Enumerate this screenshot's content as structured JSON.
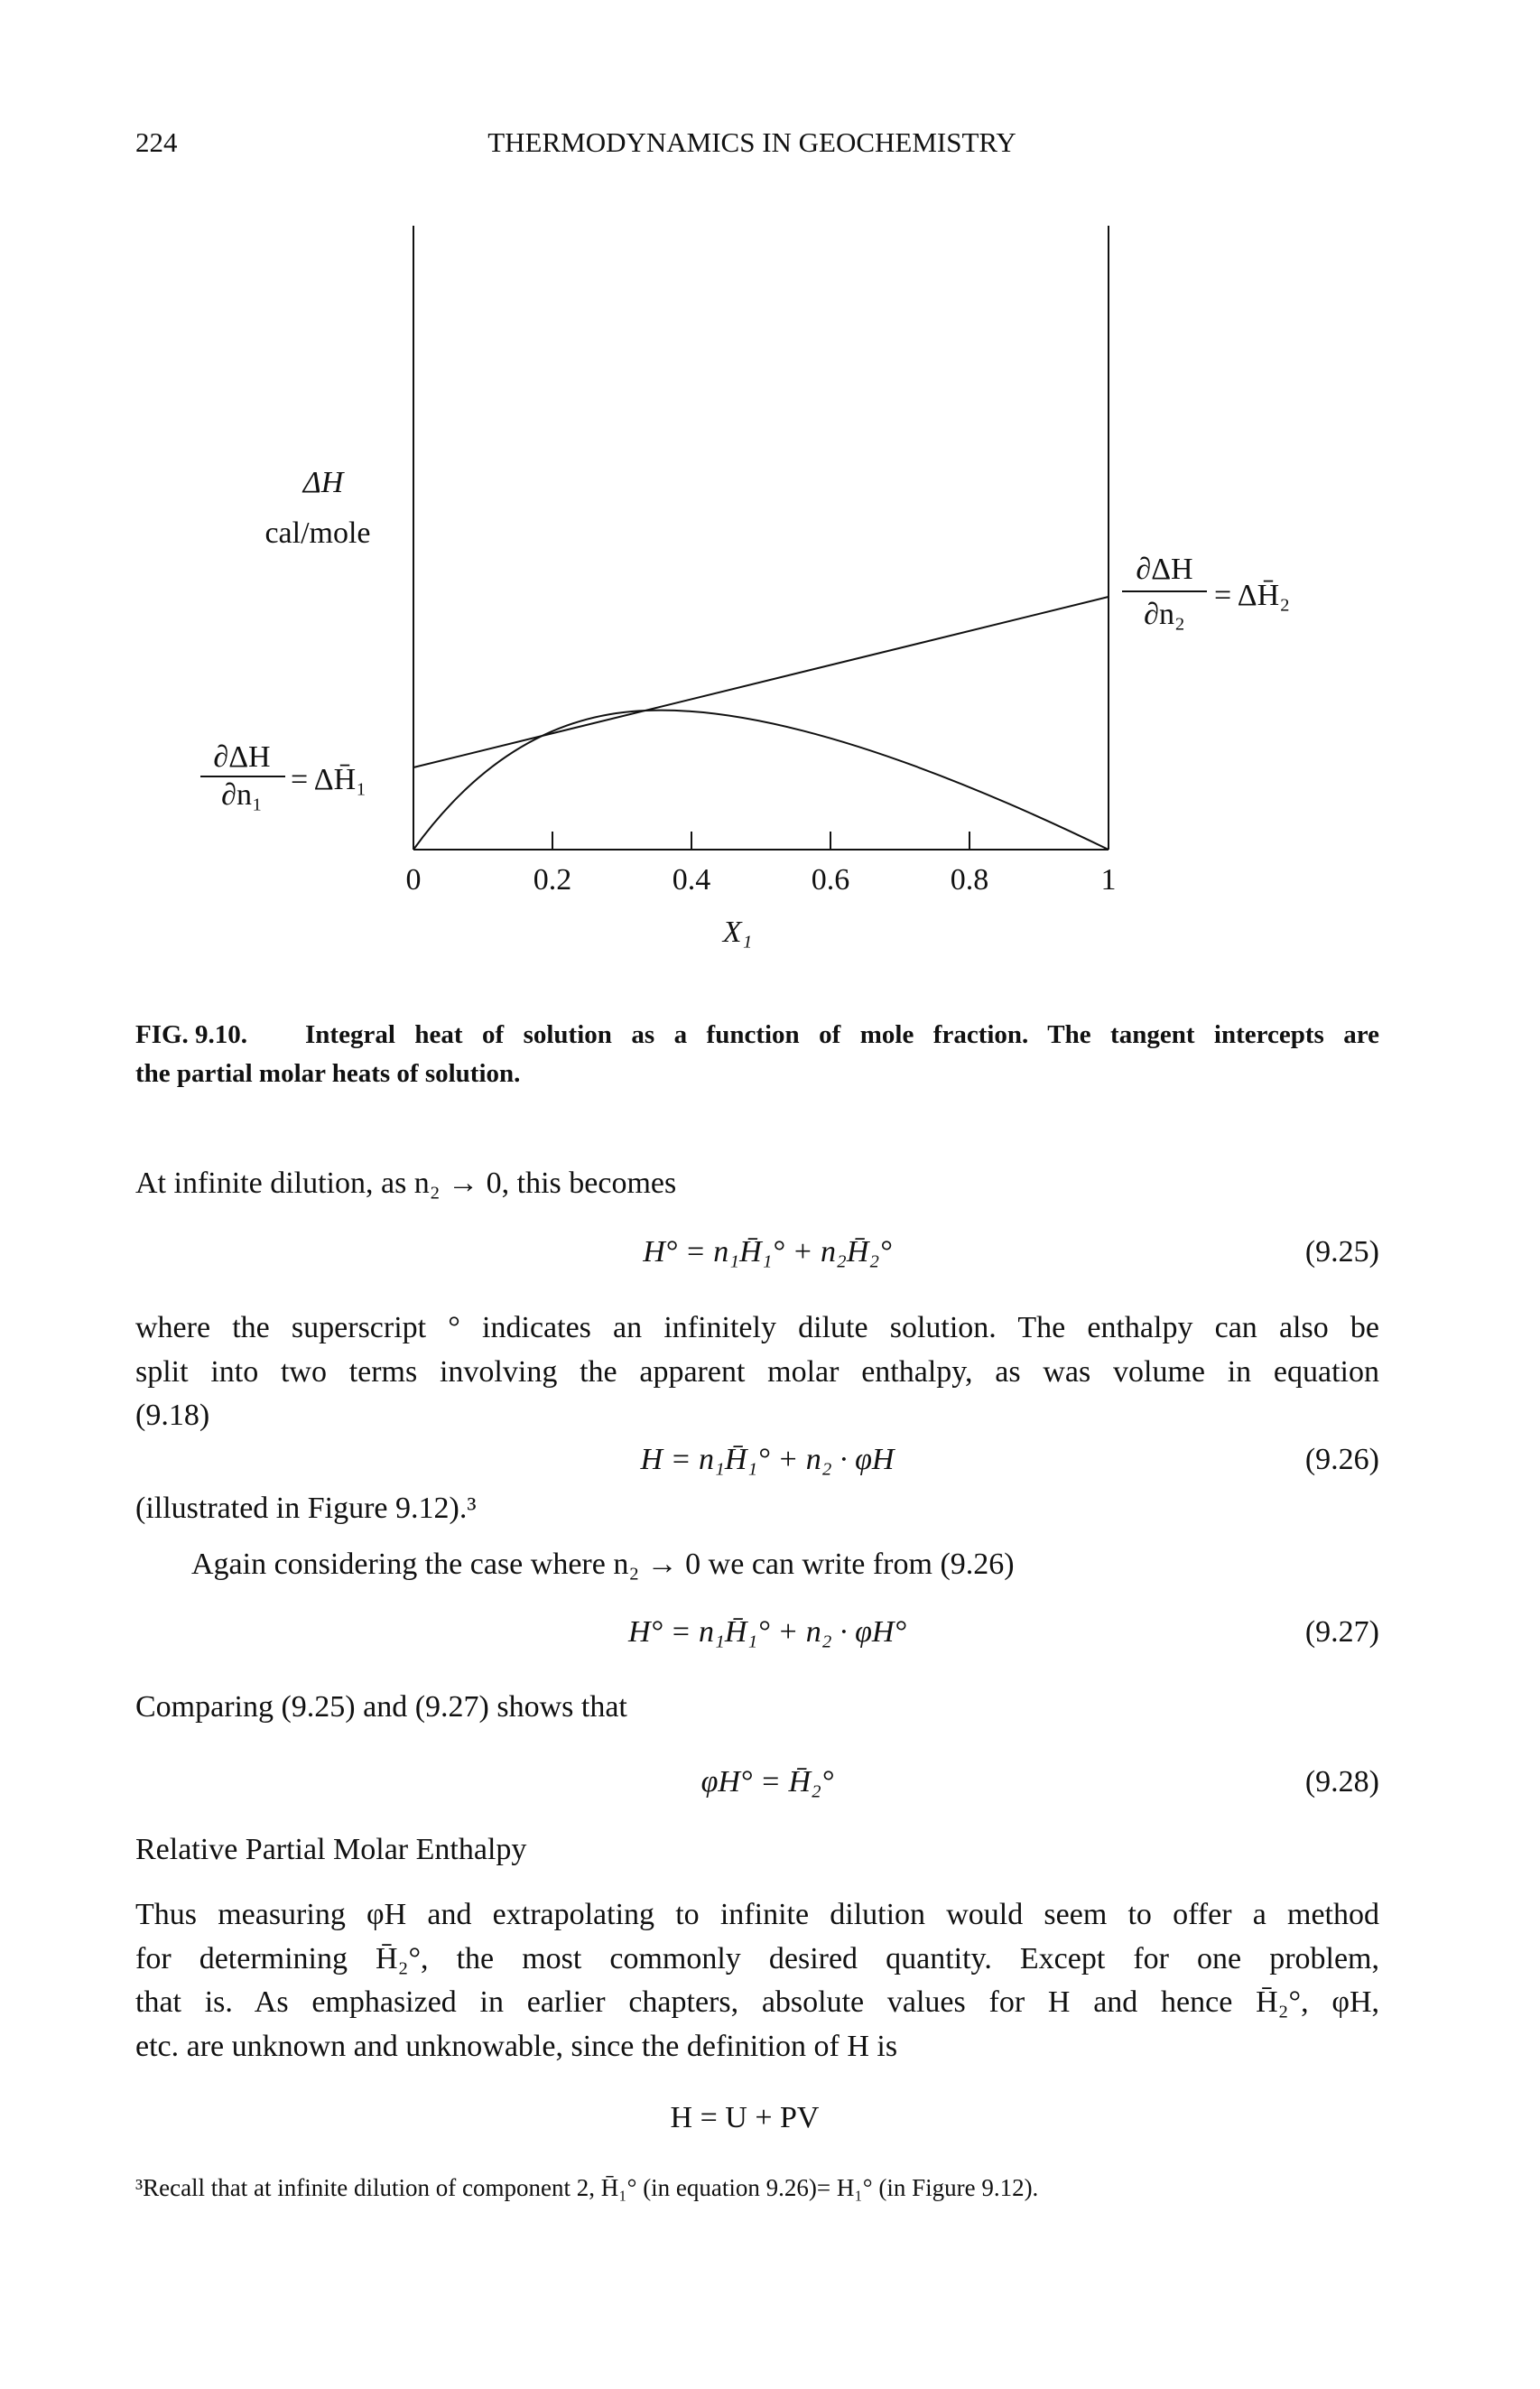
{
  "header": {
    "page_number": "224",
    "running_title": "THERMODYNAMICS IN GEOCHEMISTRY"
  },
  "figure": {
    "y_label": "ΔH",
    "y_unit": "cal/mole",
    "x_label": "X₁",
    "left_intercept": {
      "numerator": "∂ΔH",
      "denominator": "∂n₁",
      "rhs": "= ΔH̄₁"
    },
    "right_intercept": {
      "numerator": "∂ΔH",
      "denominator": "∂n₂",
      "rhs": "= ΔH̄₂"
    },
    "xlim": [
      0,
      1
    ],
    "xticks": [
      0,
      0.2,
      0.4,
      0.6,
      0.8,
      1
    ],
    "caption_label": "FIG. 9.10.",
    "caption_lines": [
      "Integral heat of solution as a function of mole fraction. The tangent intercepts are",
      "the partial molar heats of solution."
    ]
  },
  "body": {
    "intro": "At infinite dilution, as n₂ → 0, this becomes",
    "eq_9_25": {
      "formula": "H° = n₁H̄₁° + n₂H̄₂°",
      "number": "(9.25)"
    },
    "para1": [
      "where the superscript ° indicates an infinitely dilute solution. The enthalpy can also be",
      "split into two terms involving the apparent molar enthalpy, as was volume in equation",
      "(9.18)"
    ],
    "eq_9_26": {
      "formula": "H = n₁H̄₁° + n₂ · φH",
      "number": "(9.26)"
    },
    "illustrated": "(illustrated in Figure 9.12).³",
    "again": "Again considering the case where n₂ → 0 we can write from (9.26)",
    "eq_9_27": {
      "formula": "H° = n₁H̄₁° + n₂ · φH°",
      "number": "(9.27)"
    },
    "comparing": "Comparing (9.25) and (9.27) shows that",
    "eq_9_28": {
      "formula": "φH° = H̄₂°",
      "number": "(9.28)"
    },
    "heading": "Relative Partial Molar Enthalpy",
    "para2": [
      "Thus measuring φH and extrapolating to infinite dilution would seem to offer a method",
      "for determining H̄₂°, the most commonly desired quantity. Except for one problem,",
      "that is. As emphasized in earlier chapters, absolute values for H and hence H̄₂°, φH,",
      "etc. are unknown and unknowable, since the definition of H is"
    ],
    "eq_def": "H = U + PV"
  },
  "footnote": "³Recall that at infinite dilution of component 2, H̄₁° (in equation 9.26)= H₁° (in Figure 9.12)."
}
